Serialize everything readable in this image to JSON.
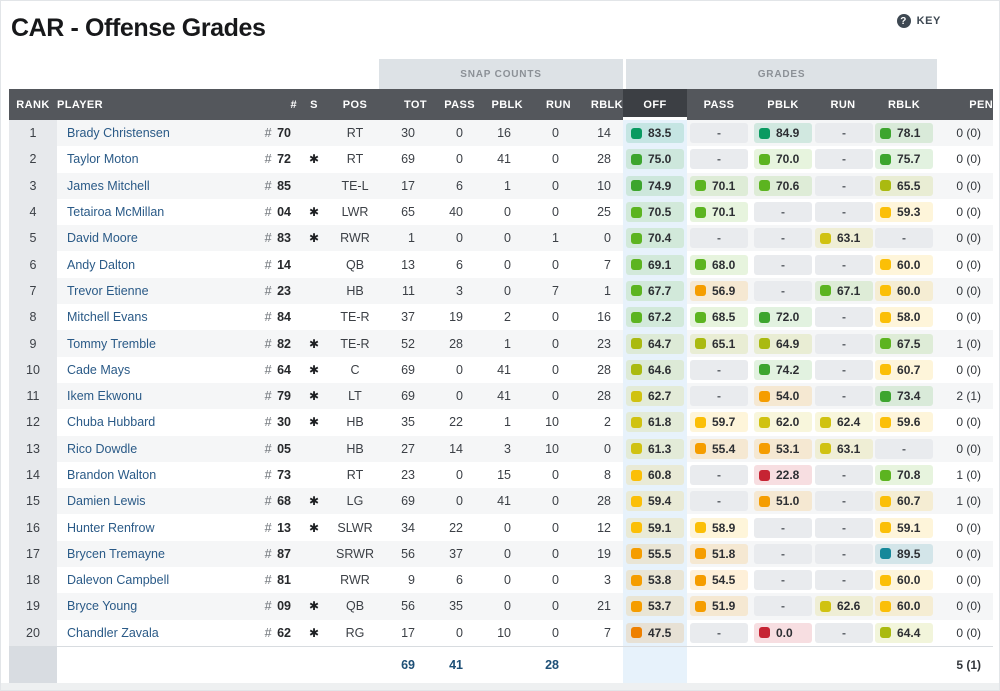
{
  "page": {
    "title": "CAR - Offense Grades",
    "key_label": "KEY",
    "key_icon": "?"
  },
  "table": {
    "group_headers": {
      "snap_counts": "SNAP COUNTS",
      "grades": "GRADES"
    },
    "columns": [
      "RANK",
      "PLAYER",
      "#",
      "S",
      "POS",
      "TOT",
      "PASS",
      "PBLK",
      "RUN",
      "RBLK",
      "OFF",
      "PASS",
      "PBLK",
      "RUN",
      "RBLK",
      "PEN"
    ],
    "selected_column": "OFF",
    "starter_marker": "✱",
    "empty_value": "-",
    "rows": [
      {
        "rank": 1,
        "player": "Brady Christensen",
        "jersey": "70",
        "starter": false,
        "pos": "RT",
        "snaps": {
          "tot": 30,
          "pass": 0,
          "pblk": 16,
          "run": 0,
          "rblk": 14
        },
        "grades": {
          "off": 83.5,
          "pass": null,
          "pblk": 84.9,
          "run": null,
          "rblk": 78.1
        },
        "pen": "0 (0)"
      },
      {
        "rank": 2,
        "player": "Taylor Moton",
        "jersey": "72",
        "starter": true,
        "pos": "RT",
        "snaps": {
          "tot": 69,
          "pass": 0,
          "pblk": 41,
          "run": 0,
          "rblk": 28
        },
        "grades": {
          "off": 75.0,
          "pass": null,
          "pblk": 70.0,
          "run": null,
          "rblk": 75.7
        },
        "pen": "0 (0)"
      },
      {
        "rank": 3,
        "player": "James Mitchell",
        "jersey": "85",
        "starter": false,
        "pos": "TE-L",
        "snaps": {
          "tot": 17,
          "pass": 6,
          "pblk": 1,
          "run": 0,
          "rblk": 10
        },
        "grades": {
          "off": 74.9,
          "pass": 70.1,
          "pblk": 70.6,
          "run": null,
          "rblk": 65.5
        },
        "pen": "0 (0)"
      },
      {
        "rank": 4,
        "player": "Tetairoa McMillan",
        "jersey": "04",
        "starter": true,
        "pos": "LWR",
        "snaps": {
          "tot": 65,
          "pass": 40,
          "pblk": 0,
          "run": 0,
          "rblk": 25
        },
        "grades": {
          "off": 70.5,
          "pass": 70.1,
          "pblk": null,
          "run": null,
          "rblk": 59.3
        },
        "pen": "0 (0)"
      },
      {
        "rank": 5,
        "player": "David Moore",
        "jersey": "83",
        "starter": true,
        "pos": "RWR",
        "snaps": {
          "tot": 1,
          "pass": 0,
          "pblk": 0,
          "run": 1,
          "rblk": 0
        },
        "grades": {
          "off": 70.4,
          "pass": null,
          "pblk": null,
          "run": 63.1,
          "rblk": null
        },
        "pen": "0 (0)"
      },
      {
        "rank": 6,
        "player": "Andy Dalton",
        "jersey": "14",
        "starter": false,
        "pos": "QB",
        "snaps": {
          "tot": 13,
          "pass": 6,
          "pblk": 0,
          "run": 0,
          "rblk": 7
        },
        "grades": {
          "off": 69.1,
          "pass": 68.0,
          "pblk": null,
          "run": null,
          "rblk": 60.0
        },
        "pen": "0 (0)"
      },
      {
        "rank": 7,
        "player": "Trevor Etienne",
        "jersey": "23",
        "starter": false,
        "pos": "HB",
        "snaps": {
          "tot": 11,
          "pass": 3,
          "pblk": 0,
          "run": 7,
          "rblk": 1
        },
        "grades": {
          "off": 67.7,
          "pass": 56.9,
          "pblk": null,
          "run": 67.1,
          "rblk": 60.0
        },
        "pen": "0 (0)"
      },
      {
        "rank": 8,
        "player": "Mitchell Evans",
        "jersey": "84",
        "starter": false,
        "pos": "TE-R",
        "snaps": {
          "tot": 37,
          "pass": 19,
          "pblk": 2,
          "run": 0,
          "rblk": 16
        },
        "grades": {
          "off": 67.2,
          "pass": 68.5,
          "pblk": 72.0,
          "run": null,
          "rblk": 58.0
        },
        "pen": "0 (0)"
      },
      {
        "rank": 9,
        "player": "Tommy Tremble",
        "jersey": "82",
        "starter": true,
        "pos": "TE-R",
        "snaps": {
          "tot": 52,
          "pass": 28,
          "pblk": 1,
          "run": 0,
          "rblk": 23
        },
        "grades": {
          "off": 64.7,
          "pass": 65.1,
          "pblk": 64.9,
          "run": null,
          "rblk": 67.5
        },
        "pen": "1 (0)"
      },
      {
        "rank": 10,
        "player": "Cade Mays",
        "jersey": "64",
        "starter": true,
        "pos": "C",
        "snaps": {
          "tot": 69,
          "pass": 0,
          "pblk": 41,
          "run": 0,
          "rblk": 28
        },
        "grades": {
          "off": 64.6,
          "pass": null,
          "pblk": 74.2,
          "run": null,
          "rblk": 60.7
        },
        "pen": "0 (0)"
      },
      {
        "rank": 11,
        "player": "Ikem Ekwonu",
        "jersey": "79",
        "starter": true,
        "pos": "LT",
        "snaps": {
          "tot": 69,
          "pass": 0,
          "pblk": 41,
          "run": 0,
          "rblk": 28
        },
        "grades": {
          "off": 62.7,
          "pass": null,
          "pblk": 54.0,
          "run": null,
          "rblk": 73.4
        },
        "pen": "2 (1)"
      },
      {
        "rank": 12,
        "player": "Chuba Hubbard",
        "jersey": "30",
        "starter": true,
        "pos": "HB",
        "snaps": {
          "tot": 35,
          "pass": 22,
          "pblk": 1,
          "run": 10,
          "rblk": 2
        },
        "grades": {
          "off": 61.8,
          "pass": 59.7,
          "pblk": 62.0,
          "run": 62.4,
          "rblk": 59.6
        },
        "pen": "0 (0)"
      },
      {
        "rank": 13,
        "player": "Rico Dowdle",
        "jersey": "05",
        "starter": false,
        "pos": "HB",
        "snaps": {
          "tot": 27,
          "pass": 14,
          "pblk": 3,
          "run": 10,
          "rblk": 0
        },
        "grades": {
          "off": 61.3,
          "pass": 55.4,
          "pblk": 53.1,
          "run": 63.1,
          "rblk": null
        },
        "pen": "0 (0)"
      },
      {
        "rank": 14,
        "player": "Brandon Walton",
        "jersey": "73",
        "starter": false,
        "pos": "RT",
        "snaps": {
          "tot": 23,
          "pass": 0,
          "pblk": 15,
          "run": 0,
          "rblk": 8
        },
        "grades": {
          "off": 60.8,
          "pass": null,
          "pblk": 22.8,
          "run": null,
          "rblk": 70.8
        },
        "pen": "1 (0)"
      },
      {
        "rank": 15,
        "player": "Damien Lewis",
        "jersey": "68",
        "starter": true,
        "pos": "LG",
        "snaps": {
          "tot": 69,
          "pass": 0,
          "pblk": 41,
          "run": 0,
          "rblk": 28
        },
        "grades": {
          "off": 59.4,
          "pass": null,
          "pblk": 51.0,
          "run": null,
          "rblk": 60.7
        },
        "pen": "1 (0)"
      },
      {
        "rank": 16,
        "player": "Hunter Renfrow",
        "jersey": "13",
        "starter": true,
        "pos": "SLWR",
        "snaps": {
          "tot": 34,
          "pass": 22,
          "pblk": 0,
          "run": 0,
          "rblk": 12
        },
        "grades": {
          "off": 59.1,
          "pass": 58.9,
          "pblk": null,
          "run": null,
          "rblk": 59.1
        },
        "pen": "0 (0)"
      },
      {
        "rank": 17,
        "player": "Brycen Tremayne",
        "jersey": "87",
        "starter": false,
        "pos": "SRWR",
        "snaps": {
          "tot": 56,
          "pass": 37,
          "pblk": 0,
          "run": 0,
          "rblk": 19
        },
        "grades": {
          "off": 55.5,
          "pass": 51.8,
          "pblk": null,
          "run": null,
          "rblk": 89.5
        },
        "pen": "0 (0)"
      },
      {
        "rank": 18,
        "player": "Dalevon Campbell",
        "jersey": "81",
        "starter": false,
        "pos": "RWR",
        "snaps": {
          "tot": 9,
          "pass": 6,
          "pblk": 0,
          "run": 0,
          "rblk": 3
        },
        "grades": {
          "off": 53.8,
          "pass": 54.5,
          "pblk": null,
          "run": null,
          "rblk": 60.0
        },
        "pen": "0 (0)"
      },
      {
        "rank": 19,
        "player": "Bryce Young",
        "jersey": "09",
        "starter": true,
        "pos": "QB",
        "snaps": {
          "tot": 56,
          "pass": 35,
          "pblk": 0,
          "run": 0,
          "rblk": 21
        },
        "grades": {
          "off": 53.7,
          "pass": 51.9,
          "pblk": null,
          "run": 62.6,
          "rblk": 60.0
        },
        "pen": "0 (0)"
      },
      {
        "rank": 20,
        "player": "Chandler Zavala",
        "jersey": "62",
        "starter": true,
        "pos": "RG",
        "snaps": {
          "tot": 17,
          "pass": 0,
          "pblk": 10,
          "run": 0,
          "rblk": 7
        },
        "grades": {
          "off": 47.5,
          "pass": null,
          "pblk": 0.0,
          "run": null,
          "rblk": 64.4
        },
        "pen": "0 (0)"
      }
    ],
    "totals": {
      "tot": 69,
      "pass": 41,
      "run": 28,
      "pen": "5 (1)"
    }
  },
  "colors": {
    "grade_scale": [
      {
        "min": 87,
        "color": "#16889a"
      },
      {
        "min": 80,
        "color": "#0a9a61"
      },
      {
        "min": 71.5,
        "color": "#3da52e"
      },
      {
        "min": 66,
        "color": "#5cb420"
      },
      {
        "min": 64,
        "color": "#aaba10"
      },
      {
        "min": 61,
        "color": "#d0c211"
      },
      {
        "min": 57.5,
        "color": "#fbbf07"
      },
      {
        "min": 50,
        "color": "#f59d00"
      },
      {
        "min": 40,
        "color": "#ee8000"
      },
      {
        "min": 0,
        "color": "#c62433"
      }
    ],
    "selected_column_bg": "#e7f2fb",
    "header_bg": "#54575c",
    "header_selected_bg": "#3c3f44",
    "link_color": "#2a5a87",
    "footer_value_color": "#1d4f76"
  }
}
